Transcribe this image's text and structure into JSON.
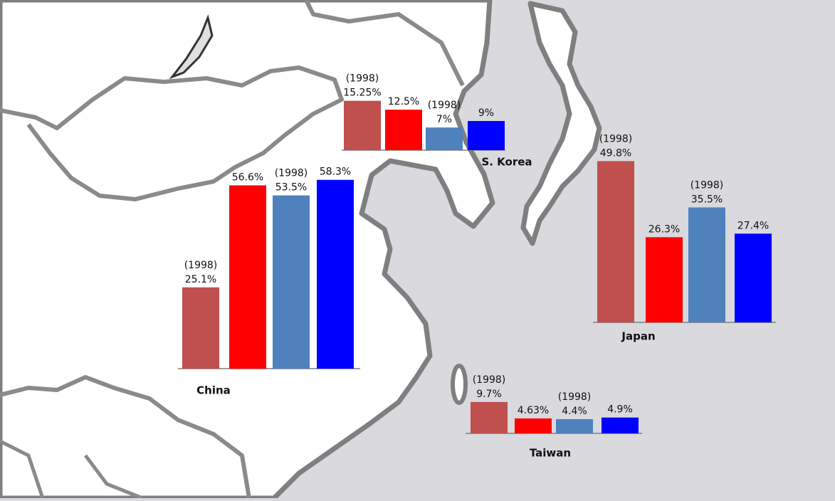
{
  "chart_data": [
    {
      "type": "bar",
      "title": "China",
      "values": [
        25.1,
        56.6,
        53.5,
        58.3
      ],
      "value_labels": [
        "25.1%",
        "56.6%",
        "53.5%",
        "58.3%"
      ],
      "annotations": [
        "(1998)",
        null,
        "(1998)",
        null
      ],
      "colors": [
        "#c0504d",
        "#ff0000",
        "#4f81bd",
        "#0000ff"
      ]
    },
    {
      "type": "bar",
      "title": "S. Korea",
      "values": [
        15.25,
        12.5,
        7,
        9
      ],
      "value_labels": [
        "15.25%",
        "12.5%",
        "7%",
        "9%"
      ],
      "annotations": [
        "(1998)",
        null,
        "(1998)",
        null
      ],
      "colors": [
        "#c0504d",
        "#ff0000",
        "#4f81bd",
        "#0000ff"
      ]
    },
    {
      "type": "bar",
      "title": "Japan",
      "values": [
        49.8,
        26.3,
        35.5,
        27.4
      ],
      "value_labels": [
        "49.8%",
        "26.3%",
        "35.5%",
        "27.4%"
      ],
      "annotations": [
        "(1998)",
        null,
        "(1998)",
        null
      ],
      "colors": [
        "#c0504d",
        "#ff0000",
        "#4f81bd",
        "#0000ff"
      ]
    },
    {
      "type": "bar",
      "title": "Taiwan",
      "values": [
        9.7,
        4.63,
        4.4,
        4.9
      ],
      "value_labels": [
        "9.7%",
        "4.63%",
        "4.4%",
        "4.9%"
      ],
      "annotations": [
        "(1998)",
        null,
        "(1998)",
        null
      ],
      "colors": [
        "#c0504d",
        "#ff0000",
        "#4f81bd",
        "#0000ff"
      ]
    }
  ]
}
